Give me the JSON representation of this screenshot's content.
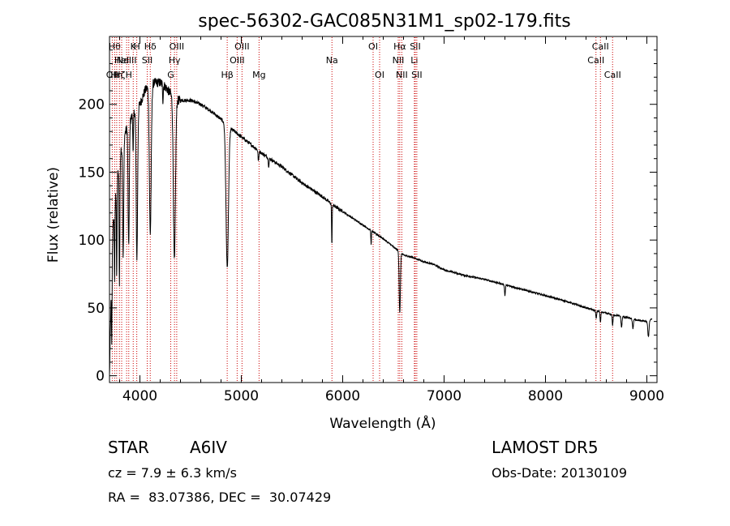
{
  "chart_data": {
    "type": "line",
    "title": "spec-56302-GAC085N31M1_sp02-179.fits",
    "xlabel": "Wavelength (Å)",
    "ylabel": "Flux (relative)",
    "xlim": [
      3700,
      9100
    ],
    "ylim": [
      -5,
      250
    ],
    "xticks": [
      4000,
      5000,
      6000,
      7000,
      8000,
      9000
    ],
    "yticks": [
      0,
      50,
      100,
      150,
      200
    ],
    "grid": false,
    "line_color": "#000000",
    "marker_color": "#cc0000",
    "continuum": [
      [
        3700,
        0
      ],
      [
        3705,
        20
      ],
      [
        3712,
        45
      ],
      [
        3720,
        80
      ],
      [
        3735,
        110
      ],
      [
        3750,
        125
      ],
      [
        3770,
        140
      ],
      [
        3800,
        160
      ],
      [
        3850,
        178
      ],
      [
        3900,
        188
      ],
      [
        3950,
        195
      ],
      [
        4000,
        200
      ],
      [
        4050,
        210
      ],
      [
        4100,
        215
      ],
      [
        4150,
        216
      ],
      [
        4200,
        216
      ],
      [
        4250,
        213
      ],
      [
        4300,
        208
      ],
      [
        4350,
        203
      ],
      [
        4400,
        203
      ],
      [
        4500,
        203
      ],
      [
        4600,
        200
      ],
      [
        4700,
        195
      ],
      [
        4800,
        189
      ],
      [
        4900,
        182
      ],
      [
        5000,
        176
      ],
      [
        5100,
        170
      ],
      [
        5200,
        164
      ],
      [
        5300,
        159
      ],
      [
        5400,
        154
      ],
      [
        5500,
        148
      ],
      [
        5600,
        142
      ],
      [
        5700,
        137
      ],
      [
        5800,
        132
      ],
      [
        5900,
        126
      ],
      [
        6000,
        121
      ],
      [
        6100,
        116
      ],
      [
        6200,
        111
      ],
      [
        6300,
        106
      ],
      [
        6400,
        101
      ],
      [
        6500,
        95
      ],
      [
        6600,
        89
      ],
      [
        6700,
        87
      ],
      [
        6800,
        84
      ],
      [
        6900,
        82
      ],
      [
        7000,
        78
      ],
      [
        7200,
        74
      ],
      [
        7400,
        71
      ],
      [
        7600,
        67
      ],
      [
        7800,
        63
      ],
      [
        8000,
        59
      ],
      [
        8200,
        55
      ],
      [
        8400,
        50
      ],
      [
        8600,
        46
      ],
      [
        8800,
        43
      ],
      [
        8900,
        41
      ],
      [
        9000,
        40
      ],
      [
        9050,
        42
      ]
    ],
    "absorption": [
      {
        "wave": 3722,
        "depth": 60,
        "width": 3
      },
      {
        "wave": 3750,
        "depth": 55,
        "width": 3
      },
      {
        "wave": 3771,
        "depth": 70,
        "width": 3
      },
      {
        "wave": 3798,
        "depth": 90,
        "width": 4
      },
      {
        "wave": 3835,
        "depth": 85,
        "width": 5
      },
      {
        "wave": 3889,
        "depth": 90,
        "width": 6
      },
      {
        "wave": 3933,
        "depth": 30,
        "width": 3
      },
      {
        "wave": 3970,
        "depth": 110,
        "width": 7
      },
      {
        "wave": 4102,
        "depth": 110,
        "width": 9
      },
      {
        "wave": 4227,
        "depth": 12,
        "width": 3
      },
      {
        "wave": 4340,
        "depth": 120,
        "width": 10
      },
      {
        "wave": 4861,
        "depth": 105,
        "width": 12
      },
      {
        "wave": 5169,
        "depth": 8,
        "width": 4
      },
      {
        "wave": 5270,
        "depth": 6,
        "width": 4
      },
      {
        "wave": 5893,
        "depth": 30,
        "width": 3
      },
      {
        "wave": 6280,
        "depth": 10,
        "width": 3
      },
      {
        "wave": 6563,
        "depth": 45,
        "width": 6
      },
      {
        "wave": 7600,
        "depth": 8,
        "width": 4
      },
      {
        "wave": 8500,
        "depth": 6,
        "width": 4
      },
      {
        "wave": 8542,
        "depth": 8,
        "width": 4
      },
      {
        "wave": 8662,
        "depth": 8,
        "width": 4
      },
      {
        "wave": 8750,
        "depth": 8,
        "width": 5
      },
      {
        "wave": 8862,
        "depth": 7,
        "width": 5
      },
      {
        "wave": 9015,
        "depth": 12,
        "width": 6
      }
    ],
    "line_markers": [
      {
        "wave": 3727,
        "label": "OII",
        "row": 2
      },
      {
        "wave": 3751,
        "label": "Hθ",
        "row": 0
      },
      {
        "wave": 3771,
        "label": "Hη",
        "row": 2
      },
      {
        "wave": 3798,
        "label": "Hζ",
        "row": 2
      },
      {
        "wave": 3820,
        "label": "HeI",
        "row": 1
      },
      {
        "wave": 3869,
        "label": "NeIII",
        "row": 1
      },
      {
        "wave": 3890,
        "label": "H",
        "row": 2
      },
      {
        "wave": 3934,
        "label": "K",
        "row": 0
      },
      {
        "wave": 3969,
        "label": "H",
        "row": 0
      },
      {
        "wave": 4072,
        "label": "SII",
        "row": 1
      },
      {
        "wave": 4102,
        "label": "Hδ",
        "row": 0
      },
      {
        "wave": 4304,
        "label": "G",
        "row": 2
      },
      {
        "wave": 4341,
        "label": "Hγ",
        "row": 1
      },
      {
        "wave": 4363,
        "label": "OIII",
        "row": 0
      },
      {
        "wave": 4861,
        "label": "Hβ",
        "row": 2
      },
      {
        "wave": 4959,
        "label": "OIII",
        "row": 1
      },
      {
        "wave": 5007,
        "label": "OIII",
        "row": 0
      },
      {
        "wave": 5175,
        "label": "Mg",
        "row": 2
      },
      {
        "wave": 5894,
        "label": "Na",
        "row": 1
      },
      {
        "wave": 6300,
        "label": "OI",
        "row": 0
      },
      {
        "wave": 6364,
        "label": "OI",
        "row": 2
      },
      {
        "wave": 6548,
        "label": "NII",
        "row": 1
      },
      {
        "wave": 6563,
        "label": "Hα",
        "row": 0
      },
      {
        "wave": 6583,
        "label": "NII",
        "row": 2
      },
      {
        "wave": 6707,
        "label": "Li",
        "row": 1
      },
      {
        "wave": 6716,
        "label": "SII",
        "row": 0
      },
      {
        "wave": 6731,
        "label": "SII",
        "row": 2
      },
      {
        "wave": 8498,
        "label": "CaII",
        "row": 1
      },
      {
        "wave": 8542,
        "label": "CaII",
        "row": 0
      },
      {
        "wave": 8662,
        "label": "CaII",
        "row": 2
      }
    ]
  },
  "info": {
    "class": "STAR",
    "subclass": "A6IV",
    "survey": "LAMOST DR5",
    "cz": "cz = 7.9 ± 6.3 km/s",
    "obs_date": "Obs-Date: 20130109",
    "coords": "RA =  83.07386, DEC =  30.07429"
  }
}
